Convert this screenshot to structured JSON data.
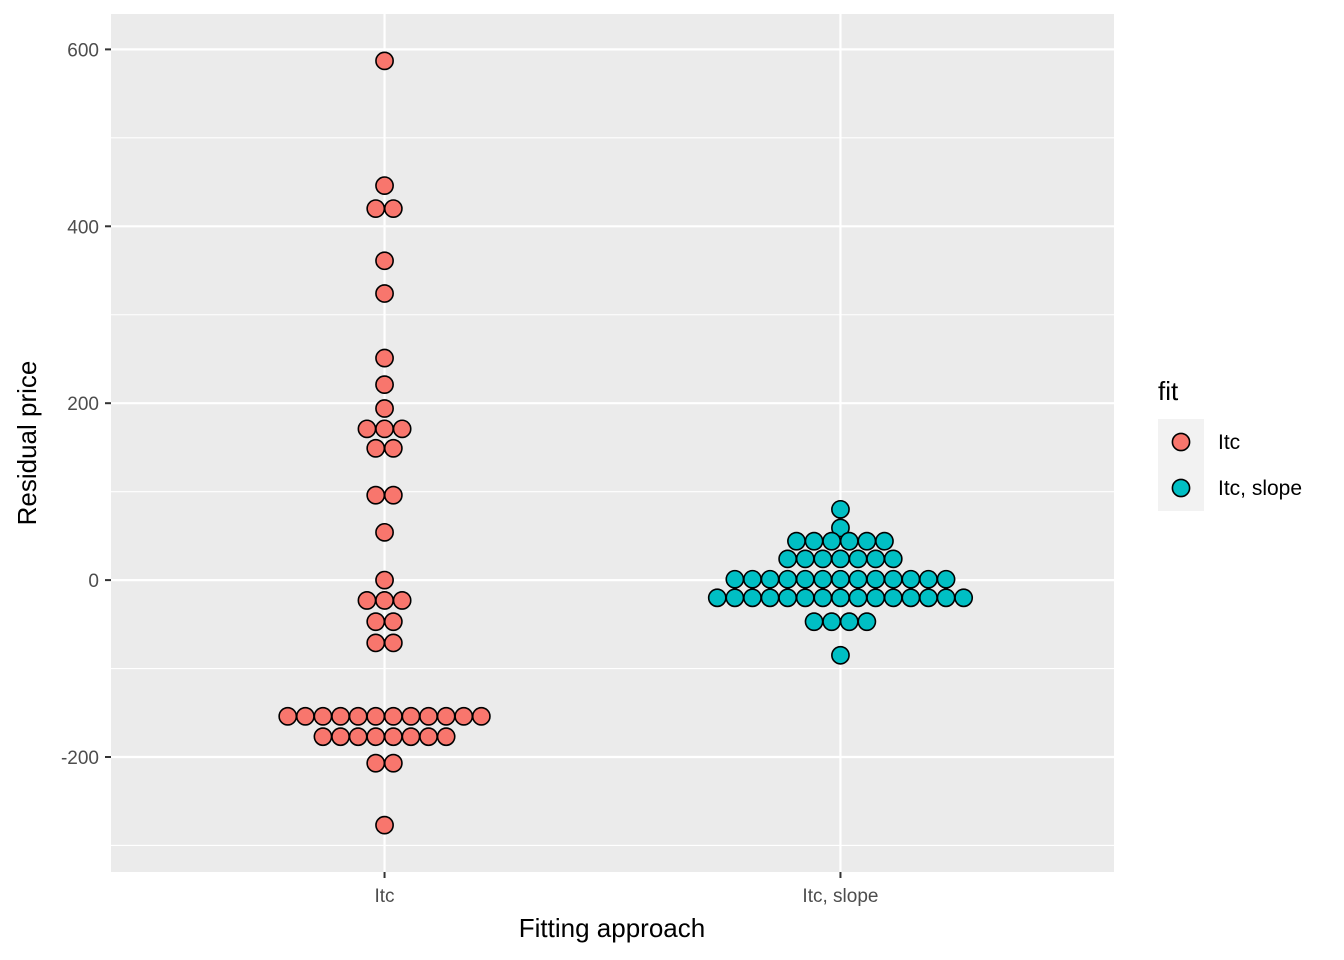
{
  "chart_data": {
    "type": "scatter",
    "subtype": "dotplot",
    "title": "",
    "xlabel": "Fitting approach",
    "ylabel": "Residual price",
    "categories": [
      "Itc",
      "Itc, slope"
    ],
    "ylim": [
      -330,
      640
    ],
    "yticks": [
      -200,
      0,
      200,
      400,
      600
    ],
    "ytick_labels": [
      "-200",
      "0",
      "200",
      "400",
      "600"
    ],
    "grid": true,
    "legend": {
      "title": "fit",
      "position": "right",
      "entries": [
        "Itc",
        "Itc, slope"
      ]
    },
    "colors": {
      "Itc": "#f8766d",
      "Itc, slope": "#00bfc4",
      "panel_background": "#ebebeb",
      "grid": "#ffffff",
      "point_outline": "#000000"
    },
    "series": [
      {
        "name": "Itc",
        "rows": [
          {
            "y": 587,
            "count": 1
          },
          {
            "y": 446,
            "count": 1
          },
          {
            "y": 420,
            "count": 2
          },
          {
            "y": 361,
            "count": 1
          },
          {
            "y": 324,
            "count": 1
          },
          {
            "y": 251,
            "count": 1
          },
          {
            "y": 221,
            "count": 1
          },
          {
            "y": 194,
            "count": 1
          },
          {
            "y": 171,
            "count": 3
          },
          {
            "y": 149,
            "count": 2
          },
          {
            "y": 96,
            "count": 2
          },
          {
            "y": 54,
            "count": 1
          },
          {
            "y": 0,
            "count": 1
          },
          {
            "y": -23,
            "count": 3
          },
          {
            "y": -47,
            "count": 2
          },
          {
            "y": -71,
            "count": 2
          },
          {
            "y": -154,
            "count": 12
          },
          {
            "y": -177,
            "count": 8
          },
          {
            "y": -207,
            "count": 2
          },
          {
            "y": -277,
            "count": 1
          }
        ]
      },
      {
        "name": "Itc, slope",
        "rows": [
          {
            "y": 80,
            "count": 1
          },
          {
            "y": 59,
            "count": 1
          },
          {
            "y": 44,
            "count": 6
          },
          {
            "y": 24,
            "count": 7
          },
          {
            "y": 1,
            "count": 13
          },
          {
            "y": -20,
            "count": 15
          },
          {
            "y": -47,
            "count": 4
          },
          {
            "y": -85,
            "count": 1
          }
        ]
      }
    ]
  }
}
